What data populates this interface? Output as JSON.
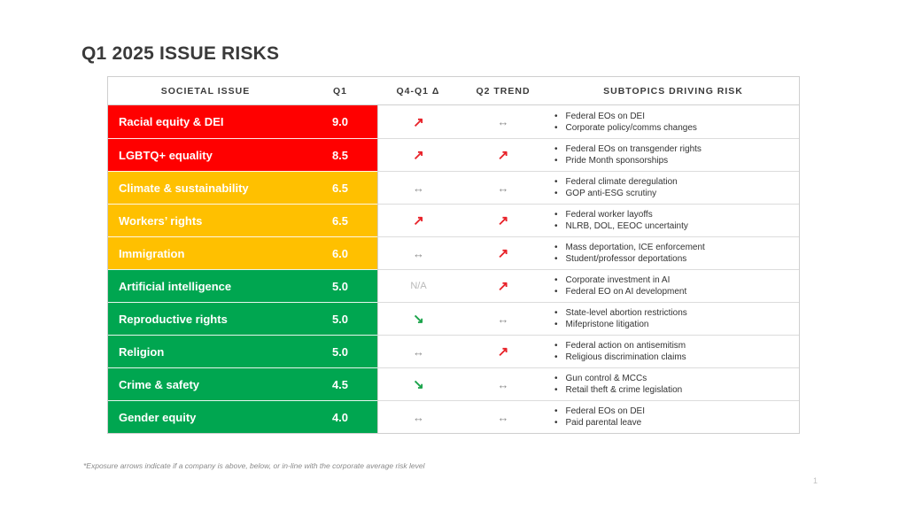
{
  "title": "Q1 2025 ISSUE RISKS",
  "headers": {
    "issue": "SOCIETAL ISSUE",
    "q1": "Q1",
    "delta": "Q4-Q1 Δ",
    "trend": "Q2 TREND",
    "subtopics": "SUBTOPICS DRIVING RISK"
  },
  "colors": {
    "red": "#ff0000",
    "amber": "#ffc000",
    "green": "#00a650"
  },
  "rows": [
    {
      "issue": "Racial equity & DEI",
      "q1": "9.0",
      "band": "red",
      "delta": "up",
      "trend": "flat",
      "subtopics": [
        "Federal EOs on DEI",
        "Corporate policy/comms changes"
      ]
    },
    {
      "issue": "LGBTQ+ equality",
      "q1": "8.5",
      "band": "red",
      "delta": "up",
      "trend": "up",
      "subtopics": [
        "Federal EOs on transgender rights",
        "Pride Month sponsorships"
      ]
    },
    {
      "issue": "Climate & sustainability",
      "q1": "6.5",
      "band": "amber",
      "delta": "flat",
      "trend": "flat",
      "subtopics": [
        "Federal climate deregulation",
        "GOP anti-ESG scrutiny"
      ]
    },
    {
      "issue": "Workers’ rights",
      "q1": "6.5",
      "band": "amber",
      "delta": "up",
      "trend": "up",
      "subtopics": [
        "Federal worker layoffs",
        "NLRB, DOL, EEOC uncertainty"
      ]
    },
    {
      "issue": "Immigration",
      "q1": "6.0",
      "band": "amber",
      "delta": "flat",
      "trend": "up",
      "subtopics": [
        "Mass deportation, ICE enforcement",
        "Student/professor deportations"
      ]
    },
    {
      "issue": "Artificial intelligence",
      "q1": "5.0",
      "band": "green",
      "delta": "na",
      "delta_text": "N/A",
      "trend": "up",
      "subtopics": [
        "Corporate investment in AI",
        "Federal EO on AI development"
      ]
    },
    {
      "issue": "Reproductive rights",
      "q1": "5.0",
      "band": "green",
      "delta": "down",
      "trend": "flat",
      "subtopics": [
        "State-level abortion restrictions",
        "Mifepristone litigation"
      ]
    },
    {
      "issue": "Religion",
      "q1": "5.0",
      "band": "green",
      "delta": "flat",
      "trend": "up",
      "subtopics": [
        "Federal action on antisemitism",
        "Religious discrimination claims"
      ]
    },
    {
      "issue": "Crime & safety",
      "q1": "4.5",
      "band": "green",
      "delta": "down",
      "trend": "flat",
      "subtopics": [
        "Gun control & MCCs",
        "Retail theft & crime legislation"
      ]
    },
    {
      "issue": "Gender equity",
      "q1": "4.0",
      "band": "green",
      "delta": "flat",
      "trend": "flat",
      "subtopics": [
        "Federal EOs on DEI",
        "Paid parental leave"
      ]
    }
  ],
  "footnote": "*Exposure arrows indicate if  a company is above, below, or in-line with the corporate average risk level",
  "page_number": "1"
}
